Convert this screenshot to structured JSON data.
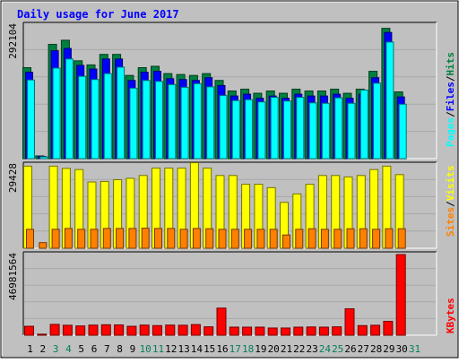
{
  "chart_data": {
    "type": "bar",
    "title": "Daily usage for June 2017",
    "categories": [
      "1",
      "2",
      "3",
      "4",
      "5",
      "6",
      "7",
      "8",
      "9",
      "10",
      "11",
      "12",
      "13",
      "14",
      "15",
      "16",
      "17",
      "18",
      "19",
      "20",
      "21",
      "22",
      "23",
      "24",
      "25",
      "26",
      "27",
      "28",
      "29",
      "30",
      "31"
    ],
    "weekend_days": [
      "3",
      "4",
      "10",
      "11",
      "17",
      "18",
      "24",
      "25",
      "31"
    ],
    "colors": {
      "hits": "#008040",
      "files": "#0000ff",
      "pages": "#00ffff",
      "visits": "#ffff00",
      "sites": "#ff8000",
      "kbytes": "#ff0000",
      "title_text": "#0000ff",
      "weekday_label": "#000000",
      "weekend_label": "#00805c",
      "panel_bg": "#c0c0c0"
    },
    "panels": [
      {
        "id": "hits",
        "ymax_label": "292104",
        "ylim": [
          0,
          292104
        ],
        "legend": [
          {
            "text": "Pages",
            "color": "#00ffff"
          },
          {
            "text": "/",
            "color": "#000000"
          },
          {
            "text": "Files",
            "color": "#0000ff"
          },
          {
            "text": "/",
            "color": "#000000"
          },
          {
            "text": "Hits",
            "color": "#008040"
          }
        ],
        "series": [
          {
            "name": "Hits",
            "color": "#008040",
            "values": [
              199000,
              6000,
              250000,
              259000,
              214000,
              205000,
              228000,
              228000,
              182000,
              199000,
              202000,
              186000,
              184000,
              182000,
              186000,
              171000,
              148000,
              152000,
              143000,
              148000,
              143000,
              152000,
              148000,
              148000,
              152000,
              143000,
              152000,
              191000,
              285000,
              146000,
              0
            ]
          },
          {
            "name": "Files",
            "color": "#0000ff",
            "values": [
              189000,
              5000,
              236000,
              241000,
              204000,
              196000,
              218000,
              218000,
              171000,
              189000,
              191000,
              175000,
              173000,
              171000,
              177000,
              160000,
              137000,
              141000,
              132000,
              137000,
              132000,
              141000,
              137000,
              137000,
              141000,
              132000,
              141000,
              177000,
              276000,
              135000,
              0
            ]
          },
          {
            "name": "Pages",
            "color": "#00ffff",
            "values": [
              172000,
              4000,
              198000,
              218000,
              180000,
              173000,
              186000,
              200000,
              154000,
              171000,
              169000,
              162000,
              156000,
              164000,
              157000,
              138000,
              127000,
              129000,
              124000,
              134000,
              126000,
              134000,
              122000,
              121000,
              133000,
              121000,
              150000,
              165000,
              255000,
              119000,
              0
            ]
          }
        ]
      },
      {
        "id": "visits",
        "ymax_label": "29428",
        "ylim": [
          0,
          29428
        ],
        "legend": [
          {
            "text": "Sites",
            "color": "#ff8000"
          },
          {
            "text": "/",
            "color": "#000000"
          },
          {
            "text": "Visits",
            "color": "#ffff00"
          }
        ],
        "series": [
          {
            "name": "Visits",
            "color": "#ffff00",
            "values": [
              29000,
              0,
              29000,
              28200,
              27800,
              23400,
              23600,
              24200,
              24700,
              25700,
              28300,
              28300,
              28300,
              30200,
              28300,
              25700,
              25700,
              22600,
              22600,
              21400,
              16200,
              19200,
              22600,
              25700,
              25700,
              25200,
              25700,
              27800,
              29000,
              26000,
              0
            ]
          },
          {
            "name": "Sites",
            "color": "#ff8000",
            "values": [
              6700,
              2000,
              6700,
              7000,
              6700,
              6700,
              7000,
              7000,
              7000,
              7100,
              7000,
              7000,
              6700,
              7000,
              6900,
              6700,
              6700,
              6700,
              6700,
              6700,
              4700,
              6700,
              6900,
              6700,
              6700,
              6900,
              6900,
              6700,
              6900,
              6900,
              0
            ]
          }
        ]
      },
      {
        "id": "kbytes",
        "ymax_label": "46981564",
        "ylim": [
          0,
          46981564
        ],
        "legend": [
          {
            "text": "KBytes",
            "color": "#ff0000"
          }
        ],
        "series": [
          {
            "name": "KBytes",
            "color": "#ff0000",
            "values": [
              5200000,
              600000,
              6300000,
              5800000,
              5400000,
              5900000,
              6100000,
              6000000,
              5200000,
              5900000,
              5600000,
              5900000,
              5800000,
              6200000,
              4900000,
              15800000,
              4700000,
              4700000,
              4700000,
              4200000,
              4200000,
              4700000,
              4800000,
              4700000,
              4900000,
              15400000,
              5600000,
              5800000,
              8100000,
              46981564,
              0
            ]
          }
        ]
      }
    ]
  }
}
